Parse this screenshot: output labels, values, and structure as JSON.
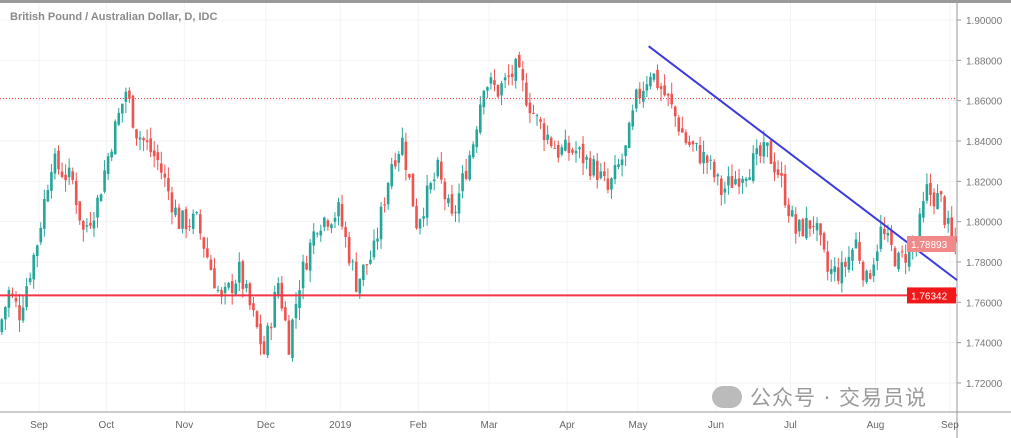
{
  "title": "British Pound / Australian Dollar, D, IDC",
  "watermark": "公众号 · 交易员说",
  "colors": {
    "up": "#26a69a",
    "down": "#ef5350",
    "trend": "#3b3bdc",
    "support": "#f23645",
    "resistance": "#f23645",
    "grid": "#f0f3f5",
    "last_label": "#f08a8a"
  },
  "chart_data": {
    "type": "candlestick",
    "title": "British Pound / Australian Dollar, D, IDC",
    "ylim": [
      1.71,
      1.905
    ],
    "y_ticks": [
      "1.90000",
      "1.88000",
      "1.86000",
      "1.84000",
      "1.82000",
      "1.80000",
      "1.78000",
      "1.76000",
      "1.74000",
      "1.72000"
    ],
    "y_tick_values": [
      1.9,
      1.88,
      1.86,
      1.84,
      1.82,
      1.8,
      1.78,
      1.76,
      1.74,
      1.72
    ],
    "x_ticks": [
      {
        "label": "Sep",
        "day": 11
      },
      {
        "label": "Oct",
        "day": 30
      },
      {
        "label": "Nov",
        "day": 52
      },
      {
        "label": "Dec",
        "day": 75
      },
      {
        "label": "2019",
        "day": 96
      },
      {
        "label": "Feb",
        "day": 118
      },
      {
        "label": "Mar",
        "day": 138
      },
      {
        "label": "Apr",
        "day": 160
      },
      {
        "label": "May",
        "day": 180
      },
      {
        "label": "Jun",
        "day": 202
      },
      {
        "label": "Jul",
        "day": 223
      },
      {
        "label": "Aug",
        "day": 247
      },
      {
        "label": "Sep",
        "day": 268
      }
    ],
    "total_days": 270,
    "price_path": [
      [
        0,
        1.745
      ],
      [
        3,
        1.765
      ],
      [
        6,
        1.755
      ],
      [
        11,
        1.79
      ],
      [
        15,
        1.83
      ],
      [
        21,
        1.82
      ],
      [
        24,
        1.795
      ],
      [
        28,
        1.81
      ],
      [
        32,
        1.84
      ],
      [
        36,
        1.865
      ],
      [
        39,
        1.845
      ],
      [
        45,
        1.83
      ],
      [
        51,
        1.8
      ],
      [
        56,
        1.8
      ],
      [
        63,
        1.76
      ],
      [
        68,
        1.775
      ],
      [
        75,
        1.735
      ],
      [
        79,
        1.77
      ],
      [
        82,
        1.74
      ],
      [
        85,
        1.77
      ],
      [
        90,
        1.8
      ],
      [
        96,
        1.805
      ],
      [
        101,
        1.77
      ],
      [
        106,
        1.785
      ],
      [
        111,
        1.83
      ],
      [
        114,
        1.84
      ],
      [
        118,
        1.8
      ],
      [
        124,
        1.825
      ],
      [
        128,
        1.8
      ],
      [
        134,
        1.84
      ],
      [
        137,
        1.87
      ],
      [
        141,
        1.865
      ],
      [
        146,
        1.875
      ],
      [
        152,
        1.85
      ],
      [
        158,
        1.835
      ],
      [
        163,
        1.835
      ],
      [
        169,
        1.825
      ],
      [
        172,
        1.815
      ],
      [
        177,
        1.835
      ],
      [
        180,
        1.86
      ],
      [
        184,
        1.875
      ],
      [
        189,
        1.86
      ],
      [
        194,
        1.84
      ],
      [
        200,
        1.83
      ],
      [
        204,
        1.815
      ],
      [
        210,
        1.825
      ],
      [
        217,
        1.835
      ],
      [
        220,
        1.825
      ],
      [
        225,
        1.795
      ],
      [
        230,
        1.8
      ],
      [
        234,
        1.775
      ],
      [
        238,
        1.775
      ],
      [
        242,
        1.79
      ],
      [
        245,
        1.77
      ],
      [
        249,
        1.795
      ],
      [
        254,
        1.78
      ],
      [
        259,
        1.79
      ],
      [
        262,
        1.815
      ],
      [
        266,
        1.81
      ],
      [
        269,
        1.789
      ]
    ],
    "trendline": {
      "start": {
        "day": 183,
        "price": 1.887
      },
      "end": {
        "day": 270,
        "price": 1.771
      }
    },
    "horizontal_lines": [
      {
        "price": 1.76342,
        "style": "solid",
        "label": "1.76342"
      },
      {
        "price": 1.861,
        "style": "dotted"
      }
    ],
    "last_price_label": "1.78893",
    "last_price": 1.78893
  }
}
